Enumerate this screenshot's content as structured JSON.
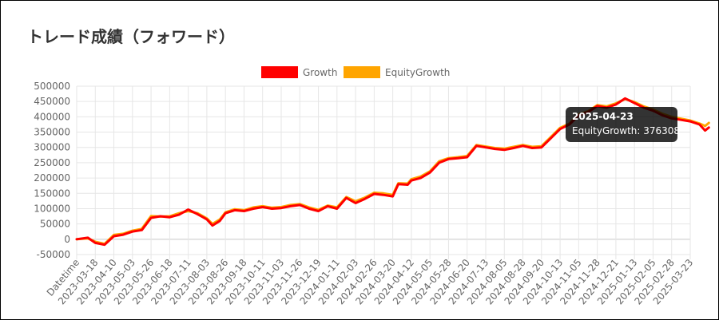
{
  "page": {
    "title": "トレード成績（フォワード）"
  },
  "chart_data": {
    "type": "line",
    "legend": {
      "placement": "top-center"
    },
    "grid": true,
    "ylim": [
      -50000,
      500000
    ],
    "y_ticks": [
      500000,
      450000,
      400000,
      350000,
      300000,
      250000,
      200000,
      150000,
      100000,
      50000,
      0,
      -50000
    ],
    "x_tick_labels": [
      "Datetime",
      "2023-03-18",
      "2023-04-10",
      "2023-05-03",
      "2023-05-26",
      "2023-06-18",
      "2023-07-11",
      "2023-08-03",
      "2023-08-26",
      "2023-09-18",
      "2023-10-11",
      "2023-11-03",
      "2023-11-26",
      "2023-12-19",
      "2024-01-11",
      "2024-02-03",
      "2024-02-26",
      "2024-03-20",
      "2024-04-12",
      "2024-05-05",
      "2024-05-28",
      "2024-06-20",
      "2024-07-13",
      "2024-08-05",
      "2024-08-28",
      "2024-09-20",
      "2024-10-13",
      "2024-11-05",
      "2024-11-28",
      "2024-12-21",
      "2025-01-13",
      "2025-02-05",
      "2025-02-28",
      "2025-03-23"
    ],
    "series": [
      {
        "name": "Growth",
        "color": "#ff0000",
        "points": [
          [
            0,
            0
          ],
          [
            0.6,
            5000
          ],
          [
            1,
            -12000
          ],
          [
            1.5,
            -18000
          ],
          [
            2,
            10000
          ],
          [
            2.5,
            15000
          ],
          [
            3,
            25000
          ],
          [
            3.5,
            30000
          ],
          [
            4,
            70000
          ],
          [
            4.5,
            75000
          ],
          [
            5,
            72000
          ],
          [
            5.5,
            80000
          ],
          [
            6,
            97000
          ],
          [
            6.5,
            82000
          ],
          [
            7,
            65000
          ],
          [
            7.3,
            45000
          ],
          [
            7.7,
            60000
          ],
          [
            8,
            85000
          ],
          [
            8.5,
            95000
          ],
          [
            9,
            92000
          ],
          [
            9.5,
            100000
          ],
          [
            10,
            105000
          ],
          [
            10.5,
            100000
          ],
          [
            11,
            102000
          ],
          [
            11.5,
            108000
          ],
          [
            12,
            112000
          ],
          [
            12.5,
            100000
          ],
          [
            13,
            92000
          ],
          [
            13.5,
            108000
          ],
          [
            14,
            100000
          ],
          [
            14.5,
            135000
          ],
          [
            15,
            118000
          ],
          [
            15.5,
            132000
          ],
          [
            16,
            148000
          ],
          [
            16.5,
            145000
          ],
          [
            17,
            140000
          ],
          [
            17.3,
            180000
          ],
          [
            17.8,
            178000
          ],
          [
            18,
            192000
          ],
          [
            18.5,
            200000
          ],
          [
            19,
            218000
          ],
          [
            19.5,
            250000
          ],
          [
            20,
            262000
          ],
          [
            20.5,
            265000
          ],
          [
            21,
            268000
          ],
          [
            21.5,
            305000
          ],
          [
            22,
            300000
          ],
          [
            22.5,
            295000
          ],
          [
            23,
            292000
          ],
          [
            23.5,
            298000
          ],
          [
            24,
            305000
          ],
          [
            24.5,
            298000
          ],
          [
            25,
            300000
          ],
          [
            25.5,
            330000
          ],
          [
            26,
            360000
          ],
          [
            26.5,
            375000
          ],
          [
            27,
            405000
          ],
          [
            27.5,
            415000
          ],
          [
            28,
            435000
          ],
          [
            28.5,
            430000
          ],
          [
            29,
            440000
          ],
          [
            29.5,
            460000
          ],
          [
            30,
            445000
          ],
          [
            30.5,
            430000
          ],
          [
            31,
            420000
          ],
          [
            31.5,
            405000
          ],
          [
            32,
            395000
          ],
          [
            32.5,
            390000
          ],
          [
            33,
            385000
          ],
          [
            33.5,
            375000
          ],
          [
            33.8,
            355000
          ],
          [
            34,
            365000
          ]
        ]
      },
      {
        "name": "EquityGrowth",
        "color": "#ffa500",
        "points": [
          [
            0,
            0
          ],
          [
            0.6,
            3000
          ],
          [
            1,
            -8000
          ],
          [
            1.5,
            -15000
          ],
          [
            2,
            14000
          ],
          [
            2.5,
            18000
          ],
          [
            3,
            28000
          ],
          [
            3.5,
            34000
          ],
          [
            4,
            76000
          ],
          [
            4.5,
            74000
          ],
          [
            5,
            75000
          ],
          [
            5.5,
            85000
          ],
          [
            6,
            92000
          ],
          [
            6.5,
            85000
          ],
          [
            7,
            68000
          ],
          [
            7.3,
            50000
          ],
          [
            7.7,
            65000
          ],
          [
            8,
            88000
          ],
          [
            8.5,
            98000
          ],
          [
            9,
            95000
          ],
          [
            9.5,
            104000
          ],
          [
            10,
            108000
          ],
          [
            10.5,
            103000
          ],
          [
            11,
            105000
          ],
          [
            11.5,
            112000
          ],
          [
            12,
            115000
          ],
          [
            12.5,
            104000
          ],
          [
            13,
            96000
          ],
          [
            13.5,
            110000
          ],
          [
            14,
            104000
          ],
          [
            14.5,
            138000
          ],
          [
            15,
            124000
          ],
          [
            15.5,
            136000
          ],
          [
            16,
            152000
          ],
          [
            16.5,
            150000
          ],
          [
            17,
            145000
          ],
          [
            17.3,
            183000
          ],
          [
            17.8,
            182000
          ],
          [
            18,
            196000
          ],
          [
            18.5,
            205000
          ],
          [
            19,
            222000
          ],
          [
            19.5,
            255000
          ],
          [
            20,
            265000
          ],
          [
            20.5,
            268000
          ],
          [
            21,
            272000
          ],
          [
            21.5,
            308000
          ],
          [
            22,
            303000
          ],
          [
            22.5,
            298000
          ],
          [
            23,
            296000
          ],
          [
            23.5,
            302000
          ],
          [
            24,
            308000
          ],
          [
            24.5,
            302000
          ],
          [
            25,
            304000
          ],
          [
            25.5,
            334000
          ],
          [
            26,
            364000
          ],
          [
            26.5,
            378000
          ],
          [
            27,
            408000
          ],
          [
            27.5,
            418000
          ],
          [
            28,
            438000
          ],
          [
            28.5,
            434000
          ],
          [
            29,
            444000
          ],
          [
            29.5,
            458000
          ],
          [
            30,
            448000
          ],
          [
            30.5,
            434000
          ],
          [
            31,
            424000
          ],
          [
            31.5,
            410000
          ],
          [
            32,
            400000
          ],
          [
            32.5,
            394000
          ],
          [
            33,
            388000
          ],
          [
            33.5,
            378000
          ],
          [
            33.8,
            370000
          ],
          [
            34,
            380000
          ]
        ]
      }
    ],
    "tooltip": {
      "title": "2025-04-23",
      "label": "EquityGrowth: 376308"
    }
  }
}
